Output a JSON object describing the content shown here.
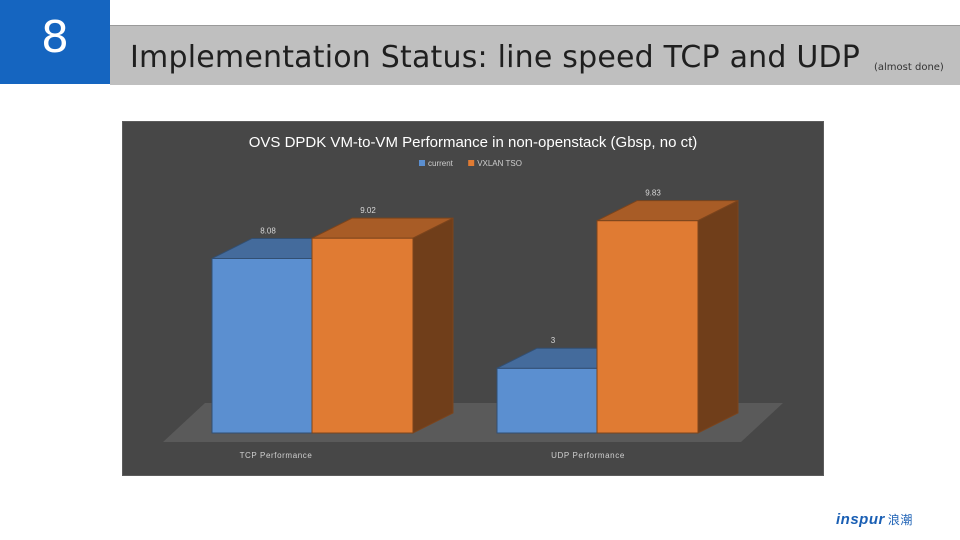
{
  "slide": {
    "number": "8",
    "title": "Implementation Status: line speed TCP and UDP",
    "title_note": "(almost done)",
    "logo_text": "inspur",
    "logo_cn": "浪潮"
  },
  "chart_data": {
    "type": "bar",
    "title": "OVS DPDK VM-to-VM Performance in non-openstack (Gbsp, no ct)",
    "categories": [
      "TCP Performance",
      "UDP Performance"
    ],
    "series": [
      {
        "name": "current",
        "color": "#5b8fd0",
        "values": [
          8.08,
          3
        ]
      },
      {
        "name": "VXLAN TSO",
        "color": "#e07b33",
        "values": [
          9.02,
          9.83
        ]
      }
    ],
    "data_labels": [
      [
        "8.08",
        "3"
      ],
      [
        "9.02",
        "9.83"
      ]
    ],
    "ylim": [
      0,
      10
    ],
    "grid": false,
    "legend": "top-center",
    "style": "3d-clustered-bar",
    "background": "#474747"
  }
}
